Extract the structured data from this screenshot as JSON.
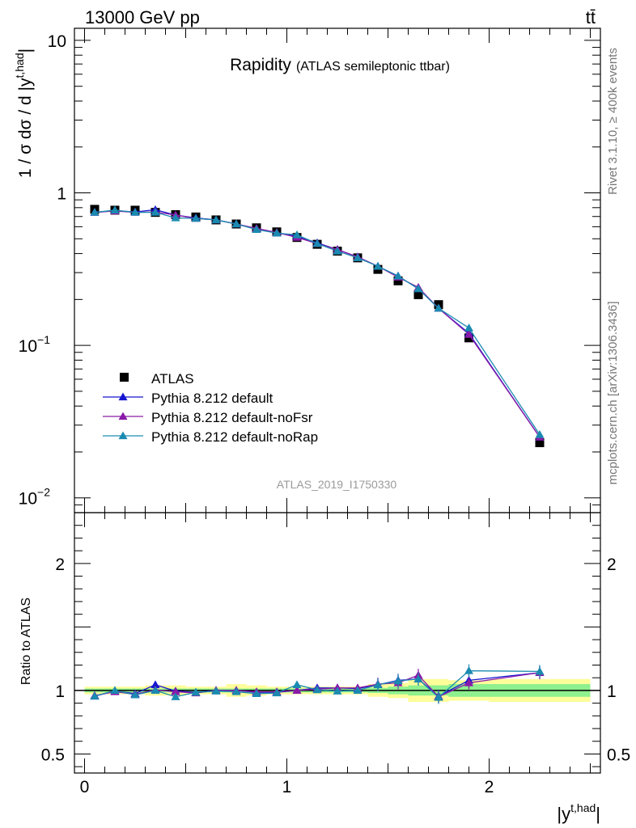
{
  "header": {
    "left": "13000 GeV pp",
    "right": "tt̄",
    "rivet": "Rivet 3.1.10, ≥ 400k events",
    "mcplots": "mcplots.cern.ch [arXiv:1306.3436]"
  },
  "chart_data": [
    {
      "type": "scatter",
      "title": "Rapidity",
      "subtitle": "(ATLAS semileptonic ttbar)",
      "ylabel": "1 / σ dσ / d |y^{t,had}|",
      "yscale": "log",
      "ylim": [
        0.008,
        12
      ],
      "xlim": [
        -0.05,
        2.55
      ],
      "watermark": "ATLAS_2019_I1750330",
      "y_ticks": [
        {
          "label": "10",
          "exp": "",
          "v": 10
        },
        {
          "label": "1",
          "exp": "",
          "v": 1
        },
        {
          "label": "10",
          "exp": "−1",
          "v": 0.1
        },
        {
          "label": "10",
          "exp": "−2",
          "v": 0.01
        }
      ],
      "legend": [
        "ATLAS",
        "Pythia 8.212 default",
        "Pythia 8.212 default-noFsr",
        "Pythia 8.212 default-noRap"
      ],
      "x": [
        0.05,
        0.15,
        0.25,
        0.35,
        0.45,
        0.55,
        0.65,
        0.75,
        0.85,
        0.95,
        1.05,
        1.15,
        1.25,
        1.35,
        1.45,
        1.55,
        1.65,
        1.75,
        1.9,
        2.25
      ],
      "series": [
        {
          "name": "ATLAS",
          "color": "#000000",
          "marker": "square",
          "values": [
            0.78,
            0.77,
            0.77,
            0.745,
            0.72,
            0.695,
            0.665,
            0.625,
            0.59,
            0.555,
            0.51,
            0.46,
            0.415,
            0.375,
            0.315,
            0.265,
            0.215,
            0.185,
            0.112,
            0.023
          ]
        },
        {
          "name": "Pythia 8.212 default",
          "color": "#1515d0",
          "marker": "triangle",
          "values": [
            0.745,
            0.765,
            0.75,
            0.775,
            0.715,
            0.685,
            0.665,
            0.625,
            0.58,
            0.545,
            0.52,
            0.47,
            0.425,
            0.38,
            0.33,
            0.285,
            0.235,
            0.175,
            0.12,
            0.025
          ]
        },
        {
          "name": "Pythia 8.212 default-noFsr",
          "color": "#8a1aa8",
          "marker": "triangle",
          "values": [
            0.745,
            0.76,
            0.745,
            0.75,
            0.715,
            0.68,
            0.665,
            0.625,
            0.585,
            0.55,
            0.51,
            0.465,
            0.425,
            0.38,
            0.33,
            0.28,
            0.24,
            0.175,
            0.118,
            0.025
          ]
        },
        {
          "name": "Pythia 8.212 default-noRap",
          "color": "#1a8ab0",
          "marker": "triangle",
          "values": [
            0.745,
            0.77,
            0.745,
            0.745,
            0.685,
            0.68,
            0.665,
            0.625,
            0.575,
            0.545,
            0.53,
            0.465,
            0.415,
            0.375,
            0.33,
            0.285,
            0.235,
            0.175,
            0.13,
            0.026
          ]
        }
      ]
    },
    {
      "type": "scatter",
      "ylabel": "Ratio to ATLAS",
      "xlabel": "|y^{t,had}|",
      "ylim": [
        0.35,
        2.4
      ],
      "xlim": [
        -0.05,
        2.55
      ],
      "x_ticks": [
        "0",
        "1",
        "2"
      ],
      "y_ticks": [
        "2",
        "1",
        "0.5"
      ],
      "x": [
        0.05,
        0.15,
        0.25,
        0.35,
        0.45,
        0.55,
        0.65,
        0.75,
        0.85,
        0.95,
        1.05,
        1.15,
        1.25,
        1.35,
        1.45,
        1.55,
        1.65,
        1.75,
        1.9,
        2.25
      ],
      "bin_edges": [
        0,
        0.1,
        0.2,
        0.3,
        0.4,
        0.5,
        0.6,
        0.7,
        0.8,
        0.9,
        1.0,
        1.1,
        1.2,
        1.3,
        1.4,
        1.5,
        1.6,
        1.7,
        1.8,
        2.0,
        2.5
      ],
      "band_stat": [
        0.015,
        0.015,
        0.015,
        0.015,
        0.015,
        0.015,
        0.015,
        0.015,
        0.015,
        0.015,
        0.015,
        0.015,
        0.015,
        0.015,
        0.02,
        0.03,
        0.04,
        0.04,
        0.05,
        0.05
      ],
      "band_tot": [
        0.03,
        0.03,
        0.03,
        0.04,
        0.04,
        0.03,
        0.03,
        0.05,
        0.04,
        0.03,
        0.03,
        0.03,
        0.03,
        0.03,
        0.05,
        0.06,
        0.09,
        0.09,
        0.08,
        0.09
      ],
      "series": [
        {
          "name": "Pythia 8.212 default",
          "color": "#1515d0",
          "values": [
            0.955,
            0.995,
            0.975,
            1.045,
            0.995,
            0.985,
            1.0,
            1.0,
            0.985,
            0.985,
            1.0,
            1.02,
            1.02,
            1.015,
            1.045,
            1.08,
            1.09,
            0.955,
            1.08,
            1.14
          ]
        },
        {
          "name": "Pythia 8.212 default-noFsr",
          "color": "#8a1aa8",
          "values": [
            0.96,
            0.99,
            0.97,
            1.005,
            0.99,
            0.98,
            1.0,
            1.0,
            0.99,
            0.99,
            1.0,
            1.01,
            1.02,
            1.02,
            1.05,
            1.06,
            1.12,
            0.95,
            1.06,
            1.14
          ]
        },
        {
          "name": "Pythia 8.212 default-noRap",
          "color": "#1a8ab0",
          "values": [
            0.955,
            1.0,
            0.965,
            1.0,
            0.95,
            0.985,
            0.995,
            0.99,
            0.975,
            0.98,
            1.045,
            1.005,
            0.995,
            1.0,
            1.045,
            1.075,
            1.09,
            0.945,
            1.155,
            1.15
          ]
        }
      ]
    }
  ]
}
